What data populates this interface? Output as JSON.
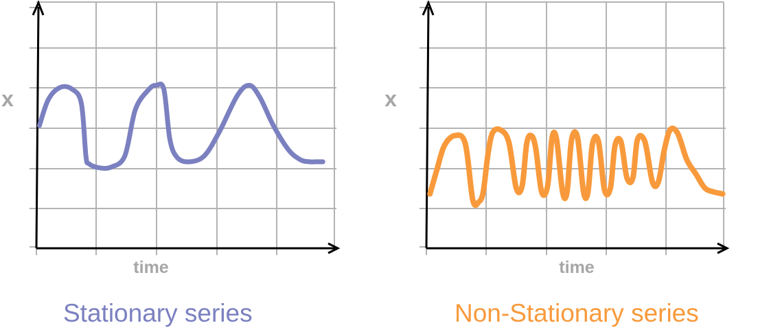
{
  "colors": {
    "grid": "#b3b3b3",
    "axis": "#000000",
    "axis_label": "#a6a6a6",
    "stationary": "#7b80c0",
    "non_stationary": "#f89a3c"
  },
  "chart_data": [
    {
      "type": "line",
      "title": "Stationary series",
      "xlabel": "time",
      "ylabel": "x",
      "grid": true,
      "xlim": [
        0,
        10
      ],
      "ylim": [
        0,
        6
      ],
      "series": [
        {
          "color": "#7b80c0",
          "x": [
            0.1,
            0.4,
            0.8,
            1.2,
            1.5,
            1.65,
            1.75,
            2.1,
            2.5,
            2.95,
            3.3,
            3.75,
            4.0,
            4.25,
            4.45,
            4.7,
            5.1,
            5.6,
            6.1,
            6.7,
            7.1,
            7.45,
            7.9,
            8.4,
            8.8,
            9.1,
            9.3,
            9.45,
            9.55
          ],
          "y": [
            3.05,
            3.7,
            4.0,
            3.95,
            3.6,
            2.3,
            2.1,
            2.0,
            2.02,
            2.3,
            3.45,
            3.95,
            4.05,
            3.95,
            2.7,
            2.25,
            2.15,
            2.3,
            2.9,
            3.8,
            4.05,
            3.75,
            3.05,
            2.45,
            2.2,
            2.15,
            2.15,
            2.15,
            2.15
          ]
        }
      ]
    },
    {
      "type": "line",
      "title": "Non-Stationary series",
      "xlabel": "time",
      "ylabel": "x",
      "grid": true,
      "xlim": [
        0,
        10
      ],
      "ylim": [
        0,
        6
      ],
      "series": [
        {
          "color": "#f89a3c",
          "x": [
            0.12,
            0.35,
            0.6,
            0.95,
            1.3,
            1.55,
            1.75,
            1.9,
            2.05,
            2.2,
            2.45,
            2.75,
            3.0,
            3.2,
            3.35,
            3.5,
            3.65,
            3.85,
            4.05,
            4.2,
            4.35,
            4.55,
            4.7,
            4.85,
            5.05,
            5.25,
            5.4,
            5.55,
            5.75,
            5.95,
            6.15,
            6.3,
            6.5,
            6.7,
            6.9,
            7.05,
            7.3,
            7.55,
            7.75,
            7.95,
            8.15,
            8.4,
            8.7,
            9.0,
            9.3,
            9.6,
            9.9
          ],
          "y": [
            1.35,
            1.95,
            2.55,
            2.8,
            2.6,
            1.2,
            1.15,
            1.4,
            2.3,
            2.85,
            2.95,
            2.65,
            1.5,
            1.55,
            2.6,
            2.8,
            2.5,
            1.4,
            1.55,
            2.75,
            2.7,
            1.4,
            1.4,
            2.7,
            2.75,
            1.4,
            1.4,
            2.6,
            2.65,
            1.45,
            1.5,
            2.55,
            2.65,
            1.75,
            1.75,
            2.7,
            2.65,
            1.65,
            1.65,
            2.45,
            2.95,
            2.85,
            2.2,
            1.85,
            1.5,
            1.4,
            1.35
          ]
        }
      ]
    }
  ]
}
